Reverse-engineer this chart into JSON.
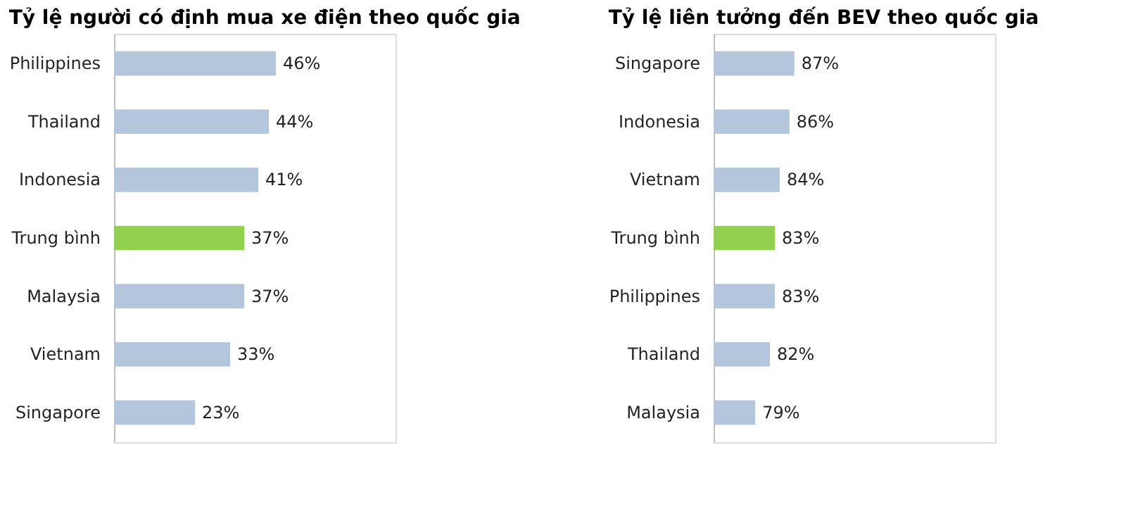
{
  "chart_data": [
    {
      "type": "bar",
      "orientation": "horizontal",
      "title": "Tỷ lệ người có định mua xe điện theo quốc gia",
      "categories": [
        "Philippines",
        "Thailand",
        "Indonesia",
        "Trung bình",
        "Malaysia",
        "Vietnam",
        "Singapore"
      ],
      "values": [
        46,
        44,
        41,
        37,
        37,
        33,
        23
      ],
      "colors": [
        "#b4c6dc",
        "#b4c6dc",
        "#b4c6dc",
        "#92d050",
        "#b4c6dc",
        "#b4c6dc",
        "#b4c6dc"
      ],
      "value_labels": [
        "46%",
        "44%",
        "41%",
        "37%",
        "37%",
        "33%",
        "23%"
      ],
      "xlim": [
        0,
        80
      ]
    },
    {
      "type": "bar",
      "orientation": "horizontal",
      "title": "Tỷ lệ liên tưởng đến BEV theo quốc gia",
      "categories": [
        "Singapore",
        "Indonesia",
        "Vietnam",
        "Trung bình",
        "Philippines",
        "Thailand",
        "Malaysia"
      ],
      "values": [
        87,
        86,
        84,
        83,
        83,
        82,
        79
      ],
      "colors": [
        "#b4c6dc",
        "#b4c6dc",
        "#b4c6dc",
        "#92d050",
        "#b4c6dc",
        "#b4c6dc",
        "#b4c6dc"
      ],
      "value_labels": [
        "87%",
        "86%",
        "84%",
        "83%",
        "83%",
        "82%",
        "79%"
      ],
      "xlim": [
        70.5,
        128
      ]
    }
  ]
}
